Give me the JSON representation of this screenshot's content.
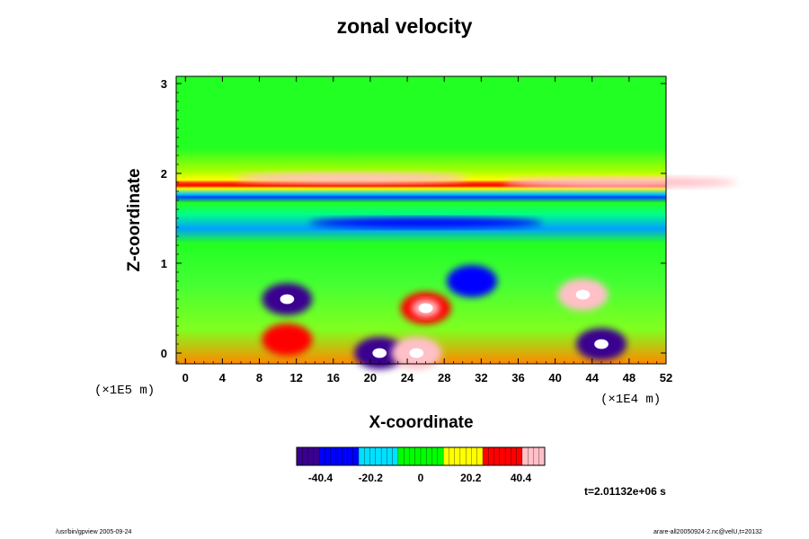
{
  "chart_data": {
    "type": "heatmap",
    "title": "zonal velocity",
    "xlabel": "X-coordinate",
    "ylabel": "Z-coordinate",
    "x_ticks": [
      "0",
      "4",
      "8",
      "12",
      "16",
      "20",
      "24",
      "28",
      "32",
      "36",
      "40",
      "44",
      "48",
      "52"
    ],
    "y_ticks": [
      "0",
      "1",
      "2",
      "3"
    ],
    "xlim": [
      -1,
      52
    ],
    "ylim": [
      -0.12,
      3.08
    ],
    "x_scale_label": "(×1E4 m)",
    "y_scale_label": "(×1E5 m)",
    "colorbar": {
      "ticks": [
        "-40.4",
        "-20.2",
        "0",
        "20.2",
        "40.4"
      ],
      "range": [
        -50,
        50
      ],
      "colors": [
        "#3a0090",
        "#0000ff",
        "#00e0ff",
        "#00ff00",
        "#ffff00",
        "#ff0000",
        "#ffc0c8"
      ]
    },
    "time_label": "t=2.01132e+06 s",
    "features": [
      {
        "x": 11,
        "z": 0.6,
        "value": -45
      },
      {
        "x": 26,
        "z": 0.5,
        "value": 40
      },
      {
        "x": 31,
        "z": 0.8,
        "value": -30
      },
      {
        "x": 43,
        "z": 0.65,
        "value": 48
      },
      {
        "x": 45,
        "z": 0.1,
        "value": -42
      },
      {
        "x": 21,
        "z": 0.0,
        "value": -45
      },
      {
        "x": 25,
        "z": 0.0,
        "value": 45
      },
      {
        "x": 11,
        "z": 0.15,
        "value": 35
      },
      {
        "x": 18,
        "z": 1.95,
        "value": 45
      },
      {
        "x": 47,
        "z": 1.9,
        "value": 45
      },
      {
        "x": 26,
        "z": 1.45,
        "value": -30
      }
    ]
  },
  "footer": {
    "left": "/usr/bin/gpview 2005-09-24",
    "right": "arare-all20050924-2.nc@velU,t=20132"
  }
}
